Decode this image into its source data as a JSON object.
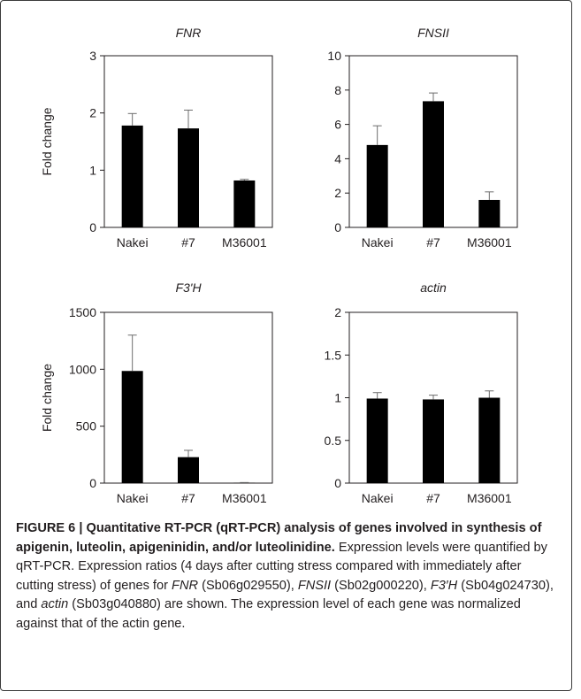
{
  "chart_data": [
    {
      "type": "bar",
      "title": "FNR",
      "ylabel": "Fold change",
      "categories": [
        "Nakei",
        "#7",
        "M36001"
      ],
      "values": [
        1.78,
        1.73,
        0.82
      ],
      "errors": [
        0.21,
        0.32,
        0.02
      ],
      "ylim": [
        0,
        3
      ],
      "yticks": [
        "0",
        "1",
        "2",
        "3"
      ],
      "ytick_values": [
        0,
        1,
        2,
        3
      ]
    },
    {
      "type": "bar",
      "title": "FNSII",
      "ylabel": "",
      "categories": [
        "Nakei",
        "#7",
        "M36001"
      ],
      "values": [
        4.8,
        7.35,
        1.6
      ],
      "errors": [
        1.12,
        0.48,
        0.47
      ],
      "ylim": [
        0,
        10
      ],
      "yticks": [
        "0",
        "2",
        "4",
        "6",
        "8",
        "10"
      ],
      "ytick_values": [
        0,
        2,
        4,
        6,
        8,
        10
      ]
    },
    {
      "type": "bar",
      "title": "F3'H",
      "ylabel": "Fold change",
      "categories": [
        "Nakei",
        "#7",
        "M36001"
      ],
      "values": [
        985,
        228,
        3
      ],
      "errors": [
        315,
        60,
        2
      ],
      "ylim": [
        0,
        1500
      ],
      "yticks": [
        "0",
        "500",
        "1000",
        "1500"
      ],
      "ytick_values": [
        0,
        500,
        1000,
        1500
      ]
    },
    {
      "type": "bar",
      "title": "actin",
      "ylabel": "",
      "categories": [
        "Nakei",
        "#7",
        "M36001"
      ],
      "values": [
        0.99,
        0.98,
        1.0
      ],
      "errors": [
        0.07,
        0.05,
        0.08
      ],
      "ylim": [
        0,
        2
      ],
      "yticks": [
        "0",
        "0.5",
        "1",
        "1.5",
        "2"
      ],
      "ytick_values": [
        0,
        0.5,
        1,
        1.5,
        2
      ]
    }
  ],
  "caption": {
    "heading": "FIGURE 6 | Quantitative RT-PCR (qRT-PCR) analysis of genes involved in synthesis of apigenin, luteolin, apigeninidin, and/or luteolinidine.",
    "sentence1": "Expression levels were quantified by qRT-PCR. Expression ratios (4 days after cutting stress compared with immediately after cutting stress) of genes for ",
    "gene1": "FNR",
    "id1": " (Sb06g029550), ",
    "gene2": "FNSII",
    "id2": " (Sb02g000220), ",
    "gene3": "F3′H",
    "id3": " (Sb04g024730), and ",
    "gene4": "actin",
    "id4": " (Sb03g040880) are shown. The expression level of each gene was normalized against that of the actin gene."
  }
}
